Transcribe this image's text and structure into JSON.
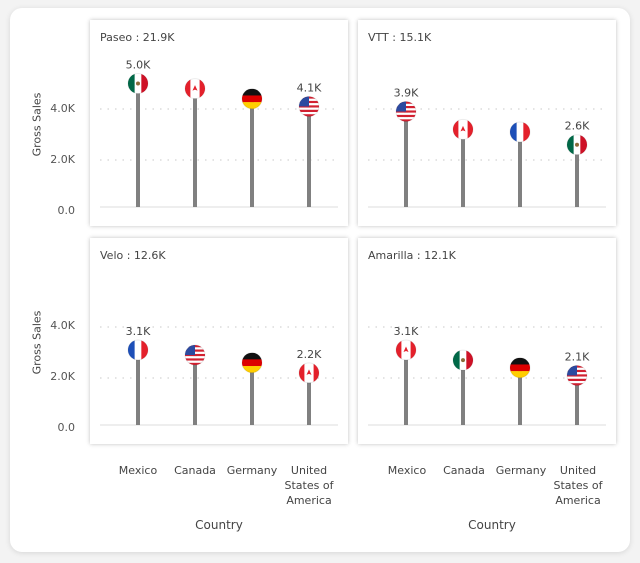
{
  "chart_data": [
    {
      "type": "lollipop",
      "title": "Paseo : 21.9K",
      "panel": "Paseo",
      "total_label": "21.9K",
      "ylabel": "Gross Sales",
      "xlabel": "Country",
      "ylim": [
        0,
        5.5
      ],
      "yticks": [
        "0.0",
        "2.0K",
        "4.0K"
      ],
      "grid": true,
      "points": [
        {
          "flag": "mexico",
          "value": 5.0,
          "label": "5.0K"
        },
        {
          "flag": "canada",
          "value": 4.8,
          "label": ""
        },
        {
          "flag": "germany",
          "value": 4.4,
          "label": ""
        },
        {
          "flag": "usa",
          "value": 4.1,
          "label": "4.1K"
        }
      ]
    },
    {
      "type": "lollipop",
      "title": "VTT : 15.1K",
      "panel": "VTT",
      "total_label": "15.1K",
      "ylabel": "",
      "xlabel": "",
      "ylim": [
        0,
        5.5
      ],
      "yticks": [],
      "grid": true,
      "points": [
        {
          "flag": "usa",
          "value": 3.9,
          "label": "3.9K"
        },
        {
          "flag": "canada",
          "value": 3.2,
          "label": ""
        },
        {
          "flag": "france",
          "value": 3.1,
          "label": ""
        },
        {
          "flag": "mexico",
          "value": 2.6,
          "label": "2.6K"
        }
      ]
    },
    {
      "type": "lollipop",
      "title": "Velo : 12.6K",
      "panel": "Velo",
      "total_label": "12.6K",
      "ylabel": "Gross Sales",
      "xlabel": "Country",
      "ylim": [
        0,
        5.5
      ],
      "yticks": [
        "0.0",
        "2.0K",
        "4.0K"
      ],
      "grid": true,
      "points": [
        {
          "flag": "france",
          "value": 3.1,
          "label": "3.1K"
        },
        {
          "flag": "usa",
          "value": 2.9,
          "label": ""
        },
        {
          "flag": "germany",
          "value": 2.6,
          "label": ""
        },
        {
          "flag": "canada",
          "value": 2.2,
          "label": "2.2K"
        }
      ]
    },
    {
      "type": "lollipop",
      "title": "Amarilla : 12.1K",
      "panel": "Amarilla",
      "total_label": "12.1K",
      "ylabel": "",
      "xlabel": "Country",
      "ylim": [
        0,
        5.5
      ],
      "yticks": [],
      "grid": true,
      "points": [
        {
          "flag": "canada",
          "value": 3.1,
          "label": "3.1K"
        },
        {
          "flag": "mexico",
          "value": 2.7,
          "label": ""
        },
        {
          "flag": "germany",
          "value": 2.4,
          "label": ""
        },
        {
          "flag": "usa",
          "value": 2.1,
          "label": "2.1K"
        }
      ]
    }
  ],
  "x_categories": [
    "Mexico",
    "Canada",
    "Germany",
    "United States of America"
  ],
  "x_category_lines": [
    [
      "Mexico"
    ],
    [
      "Canada"
    ],
    [
      "Germany"
    ],
    [
      "United",
      "States of",
      "America"
    ]
  ],
  "axis": {
    "ylabel": "Gross Sales",
    "xlabel": "Country",
    "ticks": [
      "0.0",
      "2.0K",
      "4.0K"
    ]
  },
  "colors": {
    "stem": "#808080",
    "grid": "#c8c8c8",
    "text": "#444444"
  }
}
